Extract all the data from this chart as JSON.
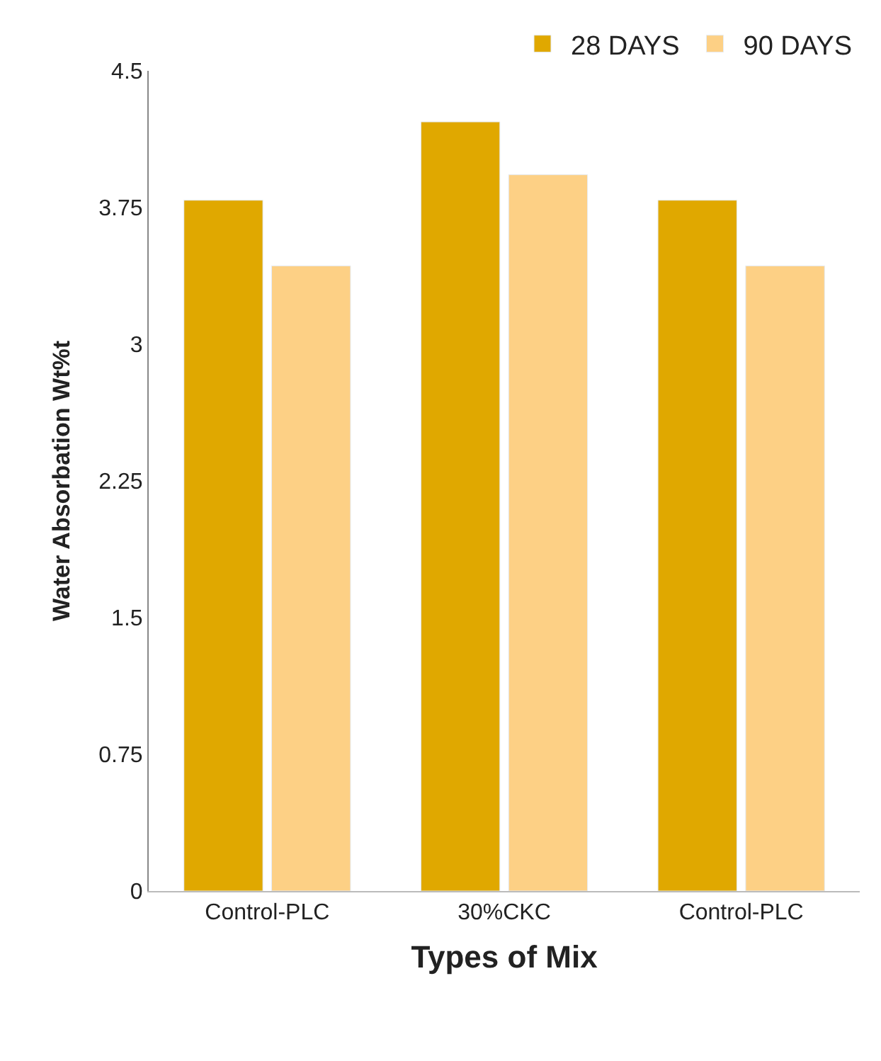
{
  "chart_data": {
    "type": "bar",
    "xlabel": "Types of Mix",
    "ylabel": "Water Absorbation Wt%t",
    "categories": [
      "Control-PLC",
      "30%CKC",
      "Control-PLC"
    ],
    "series": [
      {
        "name": "28 DAYS",
        "color": "#e0a800",
        "values": [
          3.79,
          4.22,
          3.79
        ]
      },
      {
        "name": "90 DAYS",
        "color": "#fdd085",
        "values": [
          3.43,
          3.93,
          3.43
        ]
      }
    ],
    "ylim": [
      0,
      4.5
    ],
    "yticks": [
      0,
      0.75,
      1.5,
      2.25,
      3,
      3.75,
      4.5
    ],
    "legend": "top right"
  }
}
